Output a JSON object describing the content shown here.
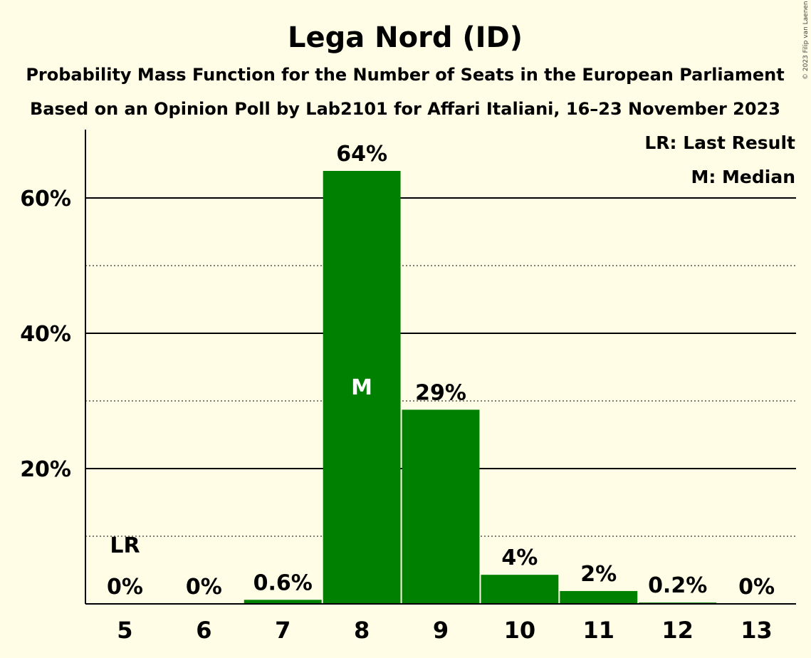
{
  "chart_data": {
    "type": "bar",
    "title": "Lega Nord (ID)",
    "subtitle_1": "Probability Mass Function for the Number of Seats in the European Parliament",
    "subtitle_2": "Based on an Opinion Poll by Lab2101 for Affari Italiani, 16–23 November 2023",
    "categories": [
      "5",
      "6",
      "7",
      "8",
      "9",
      "10",
      "11",
      "12",
      "13"
    ],
    "values": [
      0,
      0,
      0.6,
      64,
      28.7,
      4.3,
      1.9,
      0.2,
      0
    ],
    "value_labels": [
      "0%",
      "0%",
      "0.6%",
      "64%",
      "29%",
      "4%",
      "2%",
      "0.2%",
      "0%"
    ],
    "last_result_category": "5",
    "last_result_marker": "LR",
    "median_category": "8",
    "median_marker": "M",
    "ylim": [
      0,
      70
    ],
    "yticks": [
      20,
      40,
      60
    ],
    "ytick_labels": [
      "20%",
      "40%",
      "60%"
    ],
    "minor_gridlines": [
      10,
      30,
      50
    ],
    "legend": [
      "LR: Last Result",
      "M: Median"
    ],
    "legend_position": "top-right",
    "grid": true,
    "bar_color": "#008000",
    "copyright": "© 2023 Filip van Laenen"
  }
}
